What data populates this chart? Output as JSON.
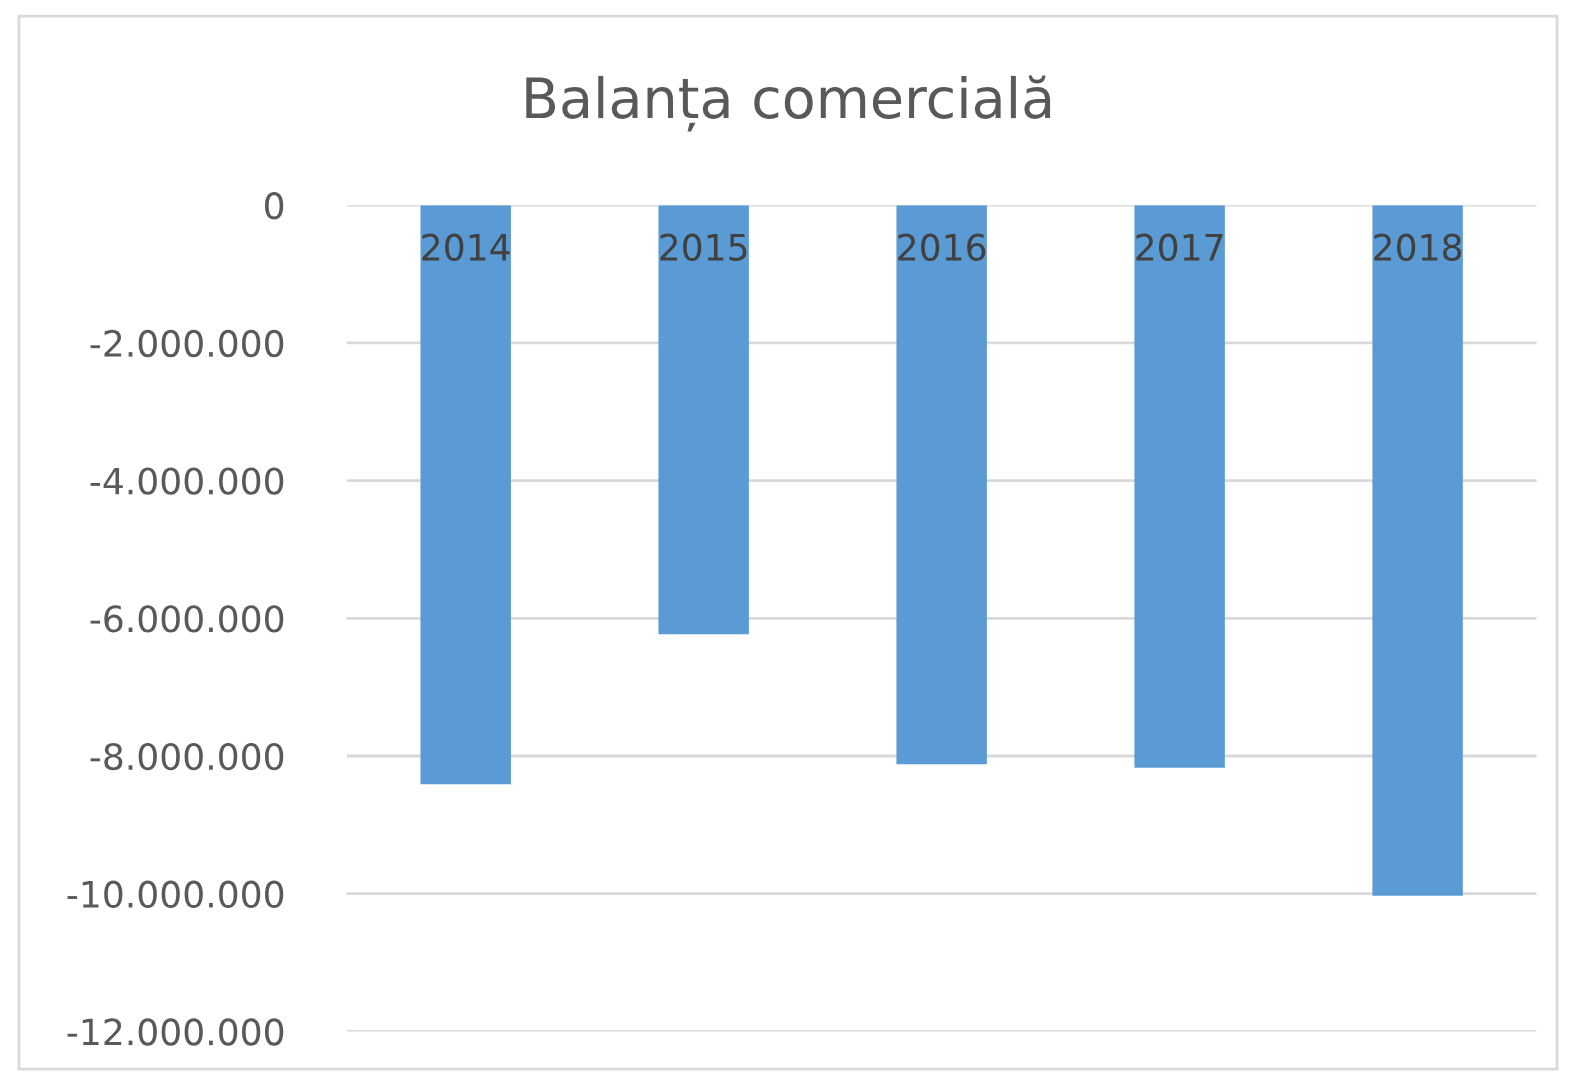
{
  "chart_data": {
    "type": "bar",
    "title": "Balanța comercială",
    "categories": [
      "2014",
      "2015",
      "2016",
      "2017",
      "2018"
    ],
    "values": [
      -8410000,
      -6230000,
      -8120000,
      -8170000,
      -10030000
    ],
    "color": "#5b9bd5",
    "ylim": [
      -12000000,
      0
    ],
    "yticks": [
      0,
      {
        "value": -2000000,
        "label": "-2.000.000"
      },
      {
        "value": -4000000,
        "label": "-4.000.000"
      },
      {
        "value": -6000000,
        "label": "-6.000.000"
      },
      {
        "value": -8000000,
        "label": "-8.000.000"
      },
      {
        "value": -10000000,
        "label": "-10.000.000"
      },
      {
        "value": -12000000,
        "label": "-12.000.000"
      }
    ],
    "grid": "y"
  }
}
